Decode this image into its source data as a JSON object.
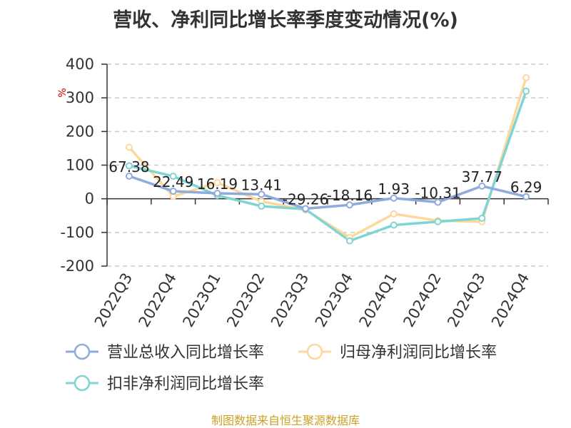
{
  "chart_data": {
    "type": "line",
    "title": "营收、净利同比增长率季度变动情况(%)",
    "ylabel": "%",
    "xlabel": "",
    "categories": [
      "2022Q3",
      "2022Q4",
      "2023Q1",
      "2023Q2",
      "2023Q3",
      "2023Q4",
      "2024Q1",
      "2024Q2",
      "2024Q3",
      "2024Q4"
    ],
    "ylim": [
      -200,
      400
    ],
    "yticks": [
      -200,
      -100,
      0,
      100,
      200,
      300,
      400
    ],
    "grid": "horizontal dashed",
    "legend_position": "bottom",
    "series": [
      {
        "name": "营业总收入同比增长率",
        "color": "#8faadc",
        "values": [
          67.38,
          22.49,
          16.19,
          13.41,
          -29.26,
          -18.16,
          1.93,
          -10.31,
          37.77,
          6.29
        ],
        "labels": [
          "67.38",
          "22.49",
          "16.19",
          "13.41",
          "-29.26",
          "-18.16",
          "1.93",
          "-10.31",
          "37.77",
          "6.29"
        ]
      },
      {
        "name": "归母净利润同比增长率",
        "color": "#fdd89a",
        "values": [
          153,
          7,
          48,
          -8,
          -33,
          -115,
          -45,
          -65,
          -68,
          360
        ]
      },
      {
        "name": "扣非净利润同比增长率",
        "color": "#7fd4d4",
        "values": [
          98,
          67,
          10,
          -22,
          -31,
          -125,
          -78,
          -68,
          -58,
          320
        ]
      }
    ]
  },
  "source": "制图数据来自恒生聚源数据库"
}
